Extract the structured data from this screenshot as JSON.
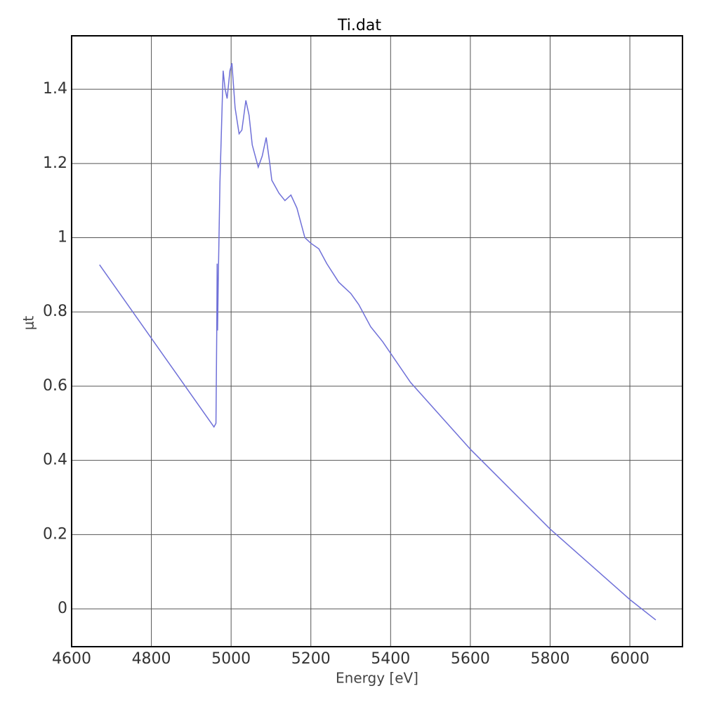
{
  "chart_data": {
    "type": "line",
    "title": "Ti.dat",
    "x_label": "Energy [eV]",
    "y_label": "μt",
    "xlim": [
      4600,
      6132
    ],
    "ylim": [
      -0.102,
      1.544
    ],
    "xticks": [
      4600,
      4800,
      5000,
      5200,
      5400,
      5600,
      5800,
      6000
    ],
    "yticks": [
      0,
      0.2,
      0.4,
      0.6,
      0.8,
      1,
      1.2,
      1.4
    ],
    "grid": true,
    "series": [
      {
        "color": "#6f70d8",
        "x": [
          4670,
          4957,
          4962,
          4964,
          4965,
          4966,
          4968,
          4972,
          4976,
          4980,
          4985,
          4990,
          4997,
          5002,
          5010,
          5020,
          5027,
          5037,
          5045,
          5053,
          5068,
          5078,
          5088,
          5097,
          5102,
          5120,
          5135,
          5150,
          5165,
          5185,
          5200,
          5220,
          5240,
          5270,
          5300,
          5320,
          5350,
          5380,
          5450,
          5600,
          5800,
          6000,
          6065
        ],
        "values": [
          0.927,
          0.49,
          0.5,
          0.75,
          0.93,
          0.75,
          0.9,
          1.15,
          1.3,
          1.45,
          1.4,
          1.375,
          1.45,
          1.47,
          1.35,
          1.28,
          1.29,
          1.37,
          1.33,
          1.25,
          1.19,
          1.22,
          1.27,
          1.2,
          1.155,
          1.12,
          1.1,
          1.115,
          1.08,
          1.0,
          0.985,
          0.97,
          0.93,
          0.88,
          0.85,
          0.82,
          0.76,
          0.72,
          0.61,
          0.43,
          0.215,
          0.025,
          -0.03
        ]
      }
    ]
  }
}
